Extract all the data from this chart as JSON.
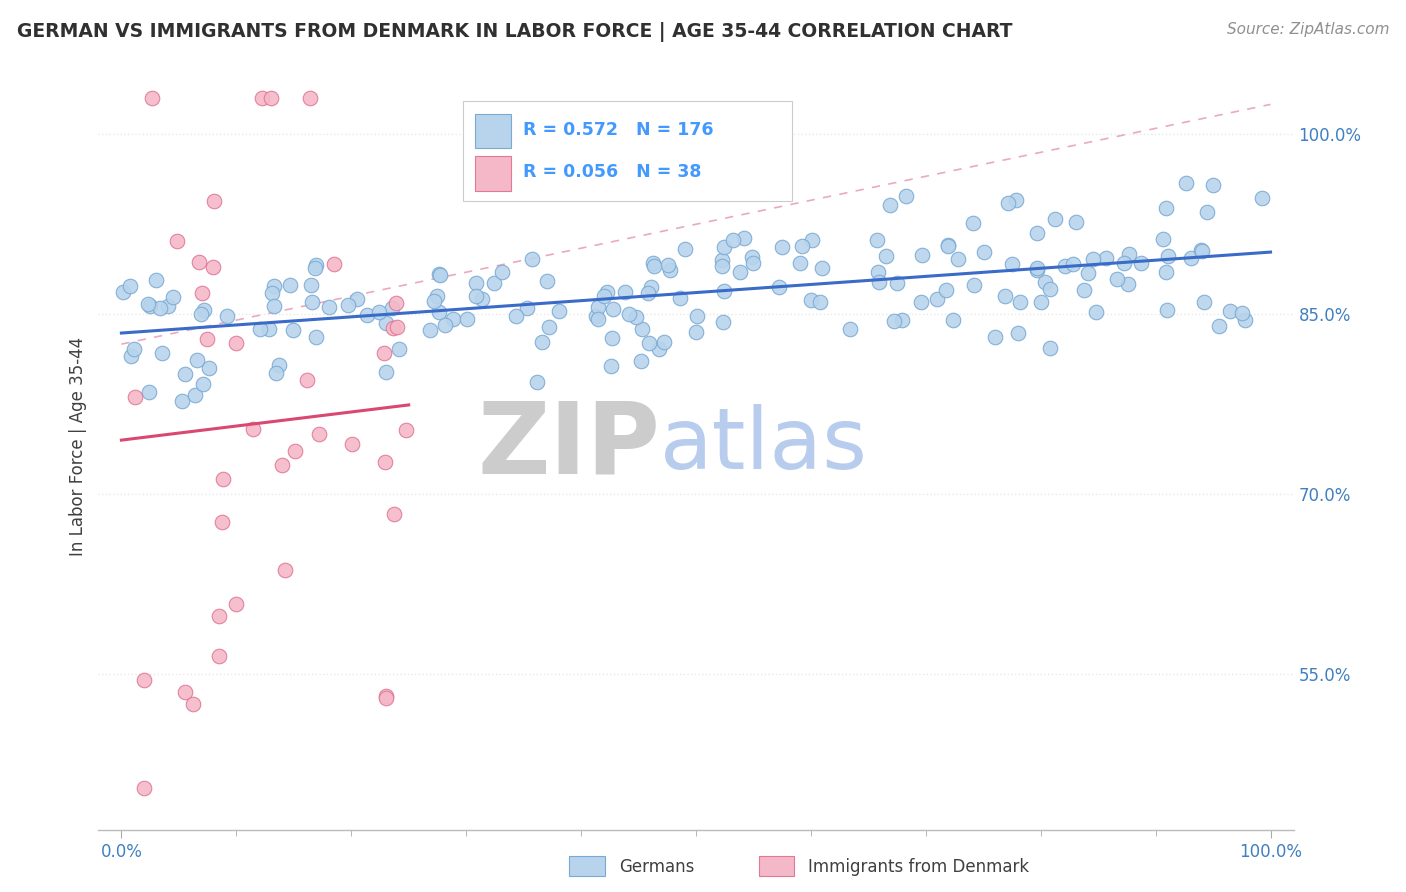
{
  "title": "GERMAN VS IMMIGRANTS FROM DENMARK IN LABOR FORCE | AGE 35-44 CORRELATION CHART",
  "source": "Source: ZipAtlas.com",
  "ylabel": "In Labor Force | Age 35-44",
  "ylim": [
    0.42,
    1.06
  ],
  "xlim": [
    -0.02,
    1.02
  ],
  "blue_R": 0.572,
  "blue_N": 176,
  "pink_R": 0.056,
  "pink_N": 38,
  "blue_color": "#b8d4ec",
  "blue_edge_color": "#7aaad4",
  "pink_color": "#f5b8c8",
  "pink_edge_color": "#e07898",
  "blue_line_color": "#3a6bc8",
  "pink_line_color": "#d84870",
  "pink_dash_color": "#e8a0b8",
  "legend_color": "#4499ff",
  "watermark_zip_color": "#cccccc",
  "watermark_atlas_color": "#b8ccee",
  "background_color": "#ffffff",
  "grid_color": "#e8e8e8",
  "title_color": "#303030",
  "source_color": "#909090",
  "axis_label_color": "#4080c0",
  "xtick_color": "#4080c0"
}
